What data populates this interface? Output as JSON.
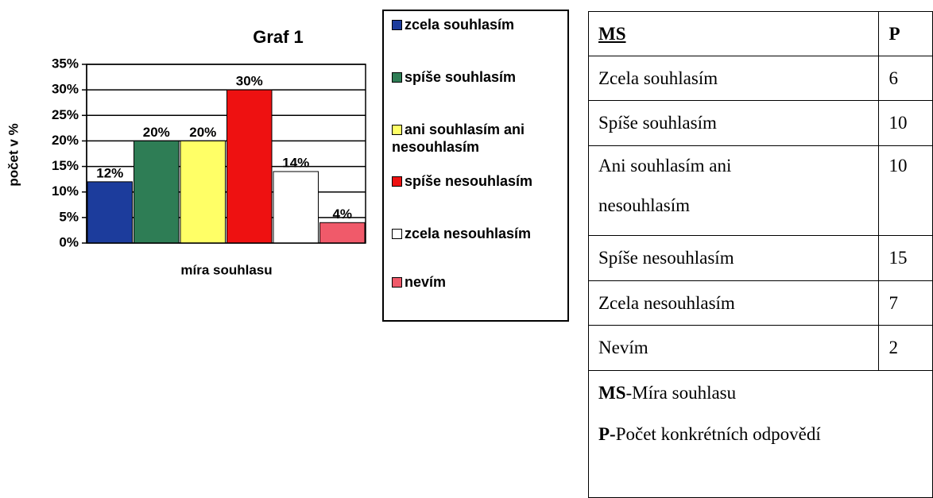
{
  "chart_data": {
    "type": "bar",
    "title": "Graf 1",
    "ylabel": "počet v %",
    "xlabel": "míra souhlasu",
    "ylim": [
      0,
      35
    ],
    "yticks": [
      {
        "value": 0,
        "label": "0%"
      },
      {
        "value": 5,
        "label": "5%"
      },
      {
        "value": 10,
        "label": "10%"
      },
      {
        "value": 15,
        "label": "15%"
      },
      {
        "value": 20,
        "label": "20%"
      },
      {
        "value": 25,
        "label": "25%"
      },
      {
        "value": 30,
        "label": "30%"
      },
      {
        "value": 35,
        "label": "35%"
      }
    ],
    "grid": true,
    "legend": "right",
    "series": [
      {
        "name": "zcela souhlasím",
        "color": "#1c3c9c",
        "values": [
          12
        ],
        "value_labels": [
          "12%"
        ]
      },
      {
        "name": "spíše souhlasím",
        "color": "#2e7d55",
        "values": [
          20
        ],
        "value_labels": [
          "20%"
        ]
      },
      {
        "name": "ani souhlasím ani nesouhlasím",
        "color": "#ffff66",
        "values": [
          20
        ],
        "value_labels": [
          "20%"
        ]
      },
      {
        "name": "spíše nesouhlasím",
        "color": "#ee1111",
        "values": [
          30
        ],
        "value_labels": [
          "30%"
        ]
      },
      {
        "name": "zcela nesouhlasím",
        "color": "#ffffff",
        "values": [
          14
        ],
        "value_labels": [
          "14%"
        ]
      },
      {
        "name": "nevím",
        "color": "#f05a6a",
        "values": [
          4
        ],
        "value_labels": [
          "4%"
        ]
      }
    ]
  },
  "table": {
    "header": [
      "MS",
      "P"
    ],
    "rows": [
      [
        "Zcela souhlasím",
        6
      ],
      [
        "Spíše souhlasím",
        10
      ],
      [
        "Ani souhlasím ani nesouhlasím",
        10
      ],
      [
        "Spíše nesouhlasím",
        15
      ],
      [
        "Zcela nesouhlasím",
        7
      ],
      [
        "Nevím",
        2
      ]
    ],
    "notes": [
      {
        "abbr": "MS",
        "text": "-Míra souhlasu"
      },
      {
        "abbr": "P-",
        "text": "Počet konkrétních odpovědí"
      }
    ]
  }
}
